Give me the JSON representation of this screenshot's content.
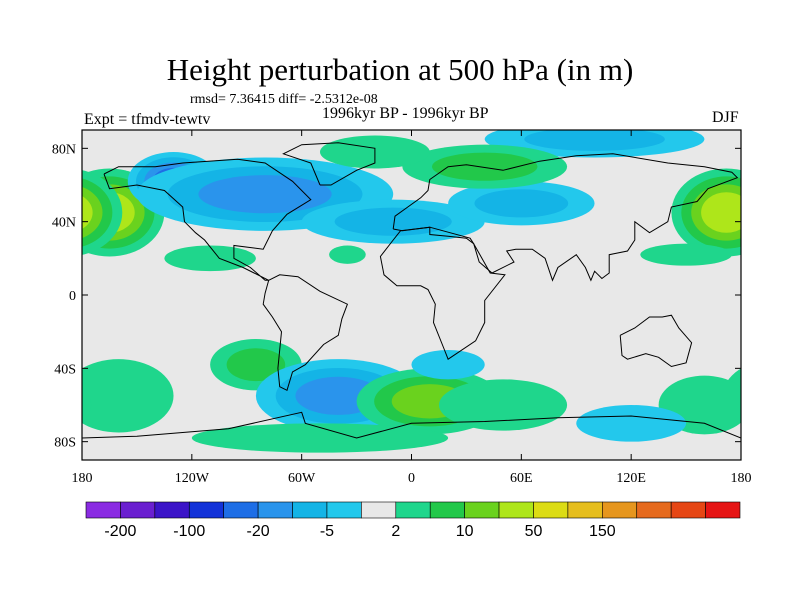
{
  "header": {
    "title": "Height perturbation at 500 hPa (in m)",
    "stats": "rmsd= 7.36415 diff= -2.5312e-08",
    "period": "1996kyr BP - 1996kyr BP",
    "experiment": "Expt = tfmdv-tewtv",
    "season": "DJF"
  },
  "chart_data": {
    "type": "heatmap",
    "title": "Height perturbation at 500 hPa (in m)",
    "subtitle": "1996kyr BP - 1996kyr BP",
    "xlabel": "",
    "ylabel": "",
    "x_range": [
      -180,
      180
    ],
    "y_range": [
      -90,
      90
    ],
    "x_ticks": [
      {
        "value": -180,
        "label": "180"
      },
      {
        "value": -120,
        "label": "120W"
      },
      {
        "value": -60,
        "label": "60W"
      },
      {
        "value": 0,
        "label": "0"
      },
      {
        "value": 60,
        "label": "60E"
      },
      {
        "value": 120,
        "label": "120E"
      },
      {
        "value": 180,
        "label": "180"
      }
    ],
    "y_ticks": [
      {
        "value": 80,
        "label": "80N"
      },
      {
        "value": 40,
        "label": "40N"
      },
      {
        "value": 0,
        "label": "0"
      },
      {
        "value": -40,
        "label": "40S"
      },
      {
        "value": -80,
        "label": "80S"
      }
    ],
    "colorbar": {
      "colors": [
        "#8a2be2",
        "#6a1fd0",
        "#3b14c8",
        "#1232d8",
        "#1e6ee6",
        "#2a94ec",
        "#14b4e6",
        "#23c8ec",
        "#e8e8e8",
        "#1fd68c",
        "#22c84a",
        "#6ad21e",
        "#aee61a",
        "#dcdc14",
        "#e6be1e",
        "#e6961e",
        "#e66a1e",
        "#e64614",
        "#e61414"
      ],
      "labels": [
        {
          "boundary": 1,
          "text": "-200"
        },
        {
          "boundary": 3,
          "text": "-100"
        },
        {
          "boundary": 5,
          "text": "-20"
        },
        {
          "boundary": 7,
          "text": "-5"
        },
        {
          "boundary": 9,
          "text": "2"
        },
        {
          "boundary": 11,
          "text": "10"
        },
        {
          "boundary": 13,
          "text": "50"
        },
        {
          "boundary": 15,
          "text": "150"
        }
      ]
    },
    "anomalies": [
      {
        "lon": -165,
        "lat": 45,
        "value": 40,
        "rlon": 30,
        "rlat": 24
      },
      {
        "lon": 172,
        "lat": 45,
        "value": 40,
        "rlon": 30,
        "rlat": 24
      },
      {
        "lon": -130,
        "lat": 62,
        "value": -30,
        "rlon": 25,
        "rlat": 16
      },
      {
        "lon": -80,
        "lat": 55,
        "value": -12,
        "rlon": 70,
        "rlat": 20
      },
      {
        "lon": -10,
        "lat": 40,
        "value": -10,
        "rlon": 50,
        "rlat": 12
      },
      {
        "lon": 60,
        "lat": 50,
        "value": -10,
        "rlon": 40,
        "rlat": 12
      },
      {
        "lon": 100,
        "lat": 85,
        "value": -8,
        "rlon": 60,
        "rlat": 10
      },
      {
        "lon": 40,
        "lat": 70,
        "value": 8,
        "rlon": 45,
        "rlat": 12
      },
      {
        "lon": -20,
        "lat": 78,
        "value": 5,
        "rlon": 30,
        "rlat": 9
      },
      {
        "lon": -110,
        "lat": 20,
        "value": 4,
        "rlon": 25,
        "rlat": 7
      },
      {
        "lon": -35,
        "lat": 22,
        "value": 3,
        "rlon": 10,
        "rlat": 5
      },
      {
        "lon": 150,
        "lat": 22,
        "value": 3,
        "rlon": 25,
        "rlat": 6
      },
      {
        "lon": -85,
        "lat": -38,
        "value": 6,
        "rlon": 25,
        "rlat": 14
      },
      {
        "lon": -40,
        "lat": -55,
        "value": -15,
        "rlon": 45,
        "rlat": 20
      },
      {
        "lon": 10,
        "lat": -58,
        "value": 15,
        "rlon": 40,
        "rlat": 18
      },
      {
        "lon": 50,
        "lat": -60,
        "value": 5,
        "rlon": 35,
        "rlat": 14
      },
      {
        "lon": 20,
        "lat": -38,
        "value": -5,
        "rlon": 20,
        "rlat": 8
      },
      {
        "lon": -160,
        "lat": -55,
        "value": 5,
        "rlon": 30,
        "rlat": 20
      },
      {
        "lon": 160,
        "lat": -60,
        "value": 4,
        "rlon": 25,
        "rlat": 16
      },
      {
        "lon": 120,
        "lat": -70,
        "value": -4,
        "rlon": 30,
        "rlat": 10
      },
      {
        "lon": -50,
        "lat": -78,
        "value": 4,
        "rlon": 70,
        "rlat": 8
      }
    ]
  }
}
